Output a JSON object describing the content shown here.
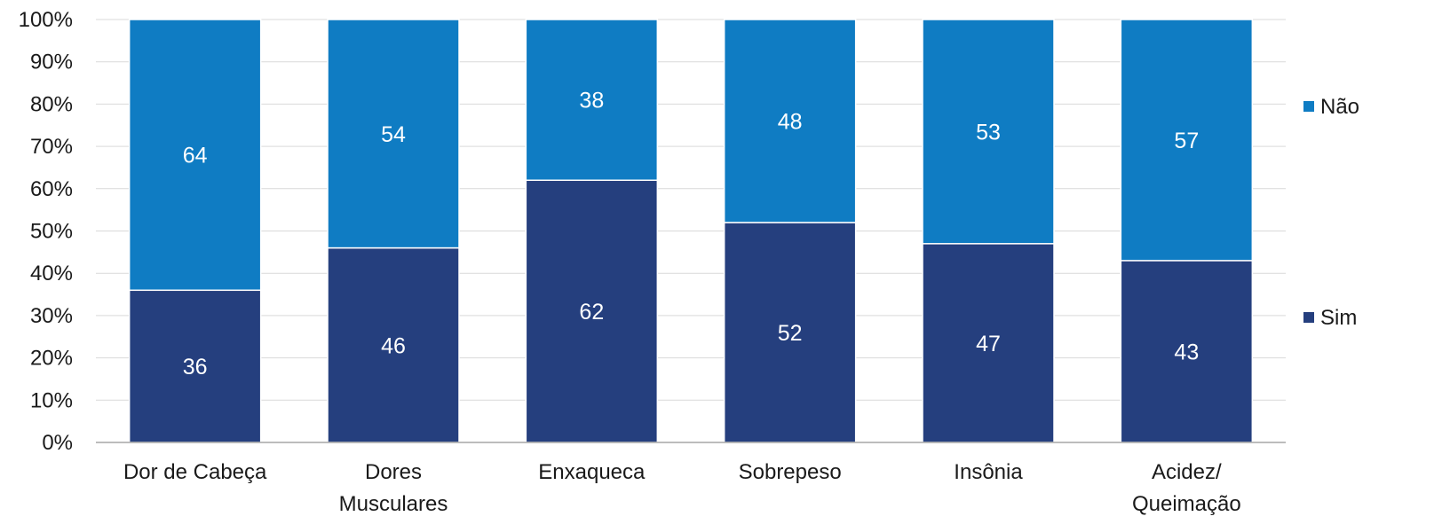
{
  "chart_data": {
    "type": "bar",
    "stacked": "percent",
    "categories": [
      "Dor de Cabeça",
      "Dores Musculares",
      "Enxaqueca",
      "Sobrepeso",
      "Insônia",
      "Acidez/ Queimação"
    ],
    "category_lines": [
      [
        "Dor de Cabeça"
      ],
      [
        "Dores",
        "Musculares"
      ],
      [
        "Enxaqueca"
      ],
      [
        "Sobrepeso"
      ],
      [
        "Insônia"
      ],
      [
        "Acidez/",
        "Queimação"
      ]
    ],
    "series": [
      {
        "name": "Sim",
        "color": "#253f7e",
        "values": [
          36,
          46,
          62,
          52,
          47,
          43
        ]
      },
      {
        "name": "Não",
        "color": "#0f7cc3",
        "values": [
          64,
          54,
          38,
          48,
          53,
          57
        ]
      }
    ],
    "y_ticks": [
      "0%",
      "10%",
      "20%",
      "30%",
      "40%",
      "50%",
      "60%",
      "70%",
      "80%",
      "90%",
      "100%"
    ],
    "ylim": [
      0,
      100
    ],
    "grid": true,
    "legend_position": "right",
    "legend_order": [
      "Não",
      "Sim"
    ]
  }
}
